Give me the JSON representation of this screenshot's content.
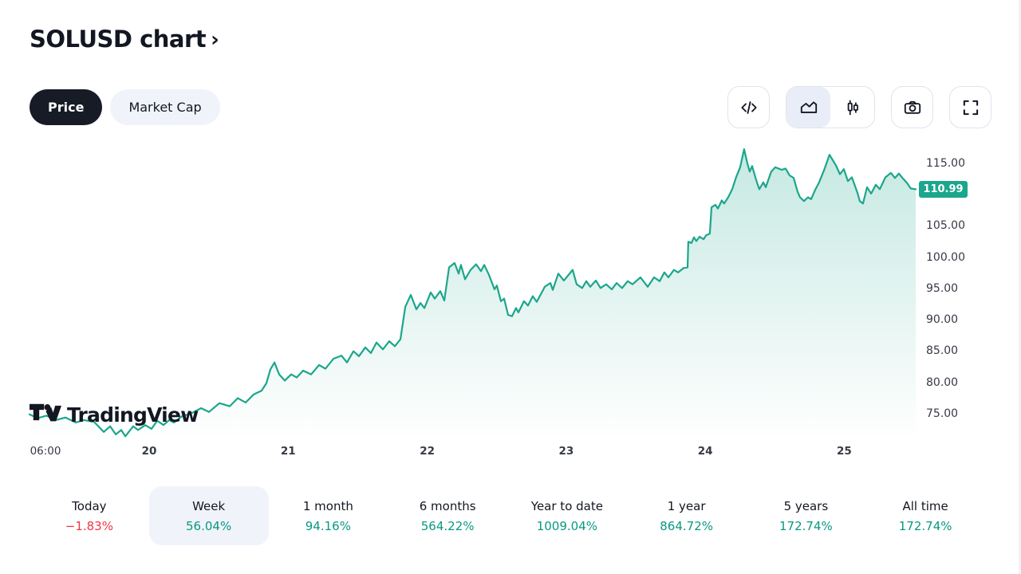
{
  "header": {
    "title": "SOLUSD chart",
    "chevron": "›"
  },
  "toggles": [
    {
      "id": "price",
      "label": "Price",
      "selected": true
    },
    {
      "id": "market-cap",
      "label": "Market Cap",
      "selected": false
    }
  ],
  "toolbar": {
    "icons": [
      {
        "name": "code-icon",
        "selected": false
      },
      {
        "name": "area-chart-icon",
        "selected": true
      },
      {
        "name": "candlestick-icon",
        "selected": false
      },
      {
        "name": "camera-icon",
        "selected": false
      },
      {
        "name": "fullscreen-icon",
        "selected": false
      }
    ]
  },
  "watermark": {
    "text": "TradingView"
  },
  "price_badge": {
    "value": "110.99"
  },
  "colors": {
    "up": "#089981",
    "down": "#F23645",
    "line": "#1CA68C",
    "badge_bg": "#1CA68C",
    "fill_top": "rgba(28,166,140,0.25)",
    "fill_bottom": "rgba(28,166,140,0)"
  },
  "chart_data": {
    "type": "area",
    "symbol": "SOLUSD",
    "last_price": 110.99,
    "x_domain": [
      19.139,
      25.514
    ],
    "y_domain": [
      70.9,
      118.3
    ],
    "grid": false,
    "legend": "none",
    "y_ticks": [
      {
        "label": "115.00",
        "value": 115
      },
      {
        "label": "110.00",
        "value": 110
      },
      {
        "label": "105.00",
        "value": 105
      },
      {
        "label": "100.00",
        "value": 100
      },
      {
        "label": "95.00",
        "value": 95
      },
      {
        "label": "90.00",
        "value": 90
      },
      {
        "label": "85.00",
        "value": 85
      },
      {
        "label": "80.00",
        "value": 80
      },
      {
        "label": "75.00",
        "value": 75
      }
    ],
    "x_ticks": [
      {
        "label": "06:00",
        "d": 19.254,
        "bold": false
      },
      {
        "label": "20",
        "d": 20,
        "bold": true
      },
      {
        "label": "21",
        "d": 21,
        "bold": true
      },
      {
        "label": "22",
        "d": 22,
        "bold": true
      },
      {
        "label": "23",
        "d": 23,
        "bold": true
      },
      {
        "label": "24",
        "d": 24,
        "bold": true
      },
      {
        "label": "25",
        "d": 25,
        "bold": true
      }
    ],
    "points": [
      [
        19.139,
        75.0
      ],
      [
        19.197,
        74.4
      ],
      [
        19.26,
        74.8
      ],
      [
        19.329,
        74.1
      ],
      [
        19.398,
        74.5
      ],
      [
        19.472,
        73.7
      ],
      [
        19.53,
        74.1
      ],
      [
        19.604,
        73.8
      ],
      [
        19.673,
        72.2
      ],
      [
        19.719,
        73.1
      ],
      [
        19.759,
        71.8
      ],
      [
        19.799,
        72.5
      ],
      [
        19.828,
        71.5
      ],
      [
        19.885,
        73.1
      ],
      [
        19.92,
        72.5
      ],
      [
        19.971,
        73.3
      ],
      [
        20.017,
        72.7
      ],
      [
        20.057,
        74.0
      ],
      [
        20.103,
        73.3
      ],
      [
        20.143,
        74.1
      ],
      [
        20.178,
        73.7
      ],
      [
        20.235,
        74.7
      ],
      [
        20.304,
        75.2
      ],
      [
        20.373,
        76.0
      ],
      [
        20.43,
        75.4
      ],
      [
        20.505,
        76.8
      ],
      [
        20.579,
        76.3
      ],
      [
        20.637,
        77.6
      ],
      [
        20.694,
        76.9
      ],
      [
        20.752,
        78.2
      ],
      [
        20.809,
        78.8
      ],
      [
        20.843,
        80.0
      ],
      [
        20.872,
        82.2
      ],
      [
        20.901,
        83.3
      ],
      [
        20.935,
        81.4
      ],
      [
        20.975,
        80.4
      ],
      [
        21.021,
        81.4
      ],
      [
        21.061,
        80.9
      ],
      [
        21.107,
        82.0
      ],
      [
        21.165,
        81.4
      ],
      [
        21.222,
        82.9
      ],
      [
        21.268,
        82.3
      ],
      [
        21.325,
        83.9
      ],
      [
        21.383,
        84.4
      ],
      [
        21.423,
        83.3
      ],
      [
        21.469,
        85.1
      ],
      [
        21.509,
        84.3
      ],
      [
        21.555,
        85.7
      ],
      [
        21.595,
        84.8
      ],
      [
        21.635,
        86.5
      ],
      [
        21.681,
        85.4
      ],
      [
        21.727,
        86.7
      ],
      [
        21.767,
        85.9
      ],
      [
        21.807,
        87.0
      ],
      [
        21.842,
        92.2
      ],
      [
        21.882,
        94.1
      ],
      [
        21.922,
        91.8
      ],
      [
        21.951,
        92.8
      ],
      [
        21.98,
        92.0
      ],
      [
        22.025,
        94.5
      ],
      [
        22.054,
        93.5
      ],
      [
        22.094,
        94.7
      ],
      [
        22.123,
        93.2
      ],
      [
        22.157,
        98.5
      ],
      [
        22.197,
        99.2
      ],
      [
        22.226,
        97.5
      ],
      [
        22.243,
        98.9
      ],
      [
        22.272,
        96.6
      ],
      [
        22.312,
        98.1
      ],
      [
        22.352,
        99.0
      ],
      [
        22.387,
        97.9
      ],
      [
        22.41,
        98.9
      ],
      [
        22.444,
        97.3
      ],
      [
        22.484,
        95.0
      ],
      [
        22.501,
        95.6
      ],
      [
        22.53,
        93.1
      ],
      [
        22.553,
        93.5
      ],
      [
        22.582,
        90.9
      ],
      [
        22.61,
        90.7
      ],
      [
        22.639,
        92.0
      ],
      [
        22.656,
        91.3
      ],
      [
        22.696,
        93.1
      ],
      [
        22.725,
        92.4
      ],
      [
        22.759,
        93.9
      ],
      [
        22.788,
        93.0
      ],
      [
        22.846,
        95.4
      ],
      [
        22.886,
        96.0
      ],
      [
        22.903,
        94.9
      ],
      [
        22.943,
        97.5
      ],
      [
        22.983,
        96.4
      ],
      [
        23.046,
        98.1
      ],
      [
        23.075,
        95.8
      ],
      [
        23.115,
        95.2
      ],
      [
        23.144,
        96.3
      ],
      [
        23.173,
        95.4
      ],
      [
        23.213,
        96.4
      ],
      [
        23.247,
        95.2
      ],
      [
        23.287,
        95.8
      ],
      [
        23.328,
        95.0
      ],
      [
        23.362,
        96.0
      ],
      [
        23.402,
        95.2
      ],
      [
        23.442,
        96.3
      ],
      [
        23.477,
        95.8
      ],
      [
        23.534,
        96.9
      ],
      [
        23.586,
        95.4
      ],
      [
        23.632,
        96.9
      ],
      [
        23.672,
        96.3
      ],
      [
        23.706,
        97.7
      ],
      [
        23.735,
        96.9
      ],
      [
        23.775,
        98.1
      ],
      [
        23.804,
        97.7
      ],
      [
        23.844,
        98.4
      ],
      [
        23.873,
        98.5
      ],
      [
        23.878,
        102.6
      ],
      [
        23.901,
        102.4
      ],
      [
        23.919,
        103.3
      ],
      [
        23.936,
        102.7
      ],
      [
        23.959,
        103.4
      ],
      [
        23.988,
        103.0
      ],
      [
        24.005,
        103.6
      ],
      [
        24.033,
        103.9
      ],
      [
        24.045,
        108.1
      ],
      [
        24.073,
        108.5
      ],
      [
        24.091,
        107.9
      ],
      [
        24.119,
        109.2
      ],
      [
        24.136,
        108.7
      ],
      [
        24.165,
        109.7
      ],
      [
        24.194,
        111.0
      ],
      [
        24.222,
        112.9
      ],
      [
        24.251,
        114.5
      ],
      [
        24.28,
        117.4
      ],
      [
        24.303,
        115.1
      ],
      [
        24.32,
        113.8
      ],
      [
        24.337,
        114.7
      ],
      [
        24.366,
        112.5
      ],
      [
        24.389,
        111.0
      ],
      [
        24.418,
        112.1
      ],
      [
        24.435,
        111.3
      ],
      [
        24.475,
        113.8
      ],
      [
        24.504,
        114.5
      ],
      [
        24.55,
        114.1
      ],
      [
        24.578,
        114.3
      ],
      [
        24.607,
        113.2
      ],
      [
        24.636,
        112.8
      ],
      [
        24.664,
        110.6
      ],
      [
        24.682,
        109.7
      ],
      [
        24.71,
        109.1
      ],
      [
        24.739,
        109.7
      ],
      [
        24.762,
        109.4
      ],
      [
        24.791,
        110.9
      ],
      [
        24.819,
        112.1
      ],
      [
        24.854,
        114.0
      ],
      [
        24.894,
        116.5
      ],
      [
        24.94,
        114.8
      ],
      [
        24.969,
        113.4
      ],
      [
        24.997,
        114.2
      ],
      [
        25.026,
        112.3
      ],
      [
        25.055,
        112.9
      ],
      [
        25.095,
        110.4
      ],
      [
        25.112,
        109.1
      ],
      [
        25.135,
        108.7
      ],
      [
        25.164,
        111.3
      ],
      [
        25.193,
        110.3
      ],
      [
        25.227,
        111.7
      ],
      [
        25.256,
        111.0
      ],
      [
        25.296,
        112.9
      ],
      [
        25.336,
        113.6
      ],
      [
        25.364,
        112.8
      ],
      [
        25.393,
        113.5
      ],
      [
        25.422,
        112.7
      ],
      [
        25.451,
        112.0
      ],
      [
        25.479,
        111.1
      ],
      [
        25.514,
        110.99
      ]
    ]
  },
  "ranges": [
    {
      "label": "Today",
      "value": "−1.83%",
      "direction": "down",
      "selected": false
    },
    {
      "label": "Week",
      "value": "56.04%",
      "direction": "up",
      "selected": true
    },
    {
      "label": "1 month",
      "value": "94.16%",
      "direction": "up",
      "selected": false
    },
    {
      "label": "6 months",
      "value": "564.22%",
      "direction": "up",
      "selected": false
    },
    {
      "label": "Year to date",
      "value": "1009.04%",
      "direction": "up",
      "selected": false
    },
    {
      "label": "1 year",
      "value": "864.72%",
      "direction": "up",
      "selected": false
    },
    {
      "label": "5 years",
      "value": "172.74%",
      "direction": "up",
      "selected": false
    },
    {
      "label": "All time",
      "value": "172.74%",
      "direction": "up",
      "selected": false
    }
  ]
}
